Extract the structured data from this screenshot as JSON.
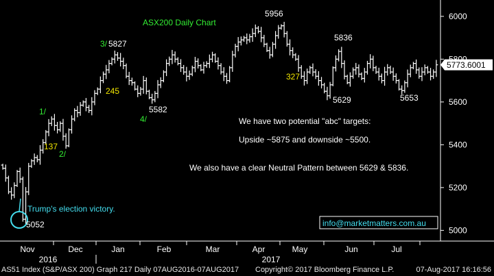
{
  "chart_data": {
    "type": "ohlc",
    "title": "ASX200 Daily Chart",
    "ylim": [
      4950,
      6070
    ],
    "y_ticks": [
      5000,
      5200,
      5400,
      5600,
      5800,
      6000
    ],
    "months": [
      "Nov",
      "Dec",
      "Jan",
      "Feb",
      "Mar",
      "Apr",
      "May",
      "Jun",
      "Jul"
    ],
    "years": [
      "2016",
      "2017"
    ],
    "last_price": "5773.6001",
    "series": [
      {
        "close": [
          5290,
          5245,
          5180,
          5165,
          5210,
          5275,
          5240,
          5052,
          5180,
          5300,
          5325,
          5340,
          5330,
          5375,
          5410,
          5460,
          5500,
          5520,
          5490,
          5470,
          5500,
          5440,
          5395,
          5470,
          5520,
          5560,
          5550,
          5585,
          5600,
          5575,
          5560,
          5600,
          5640,
          5660,
          5700,
          5730,
          5750,
          5780,
          5800,
          5820,
          5805,
          5790,
          5770,
          5720,
          5700,
          5690,
          5660,
          5640,
          5660,
          5700,
          5650,
          5620,
          5610,
          5640,
          5680,
          5700,
          5740,
          5780,
          5800,
          5820,
          5800,
          5780,
          5760,
          5740,
          5720,
          5730,
          5760,
          5790,
          5770,
          5750,
          5770,
          5780,
          5800,
          5820,
          5790,
          5770,
          5740,
          5720,
          5700,
          5760,
          5820,
          5860,
          5880,
          5890,
          5900,
          5890,
          5905,
          5920,
          5945,
          5930,
          5900,
          5870,
          5840,
          5820,
          5870,
          5910,
          5945,
          5956,
          5920,
          5870,
          5840,
          5820,
          5800,
          5760,
          5720,
          5700,
          5740,
          5760,
          5740,
          5720,
          5700,
          5680,
          5650,
          5629,
          5680,
          5760,
          5800,
          5836,
          5780,
          5720,
          5690,
          5720,
          5750,
          5760,
          5730,
          5710,
          5740,
          5780,
          5800,
          5760,
          5740,
          5720,
          5700,
          5740,
          5760,
          5740,
          5720,
          5700,
          5660,
          5653,
          5690,
          5730,
          5760,
          5780,
          5750,
          5720,
          5740,
          5760,
          5740,
          5720,
          5740,
          5773.6
        ]
      }
    ],
    "annotations": {
      "high_5956": "5956",
      "high_5836": "5836",
      "high_5827": "5827",
      "low_5629": "5629",
      "low_5653": "5653",
      "low_5582": "5582",
      "low_5052": "5052",
      "wave_1": "1/",
      "wave_2": "2/",
      "wave_3": "3/",
      "wave_4": "4/",
      "fib_137": "137",
      "fib_245": "245",
      "fib_327": "327",
      "election": "Trump's election victory.",
      "note_1": "We have two potential \"abc\" targets:",
      "note_2": "Upside ~5875 and downside ~5500.",
      "note_3": "We also have a clear Neutral Pattern between 5629 & 5836.",
      "email": "info@marketmatters.com.au"
    },
    "grid": false,
    "colors": {
      "background": "#000000",
      "bars": "#ffffff",
      "green_labels": "#33ee33",
      "yellow_labels": "#f2e600",
      "cyan": "#44ddee",
      "price_box": "#ffffff"
    }
  },
  "footer": {
    "left": "AS51 Index (S&P/ASX 200) Graph 217  Daily 07AUG2016-07AUG2017",
    "center": "Copyright© 2017 Bloomberg Finance L.P.",
    "right": "07-Aug-2017 16:16:56"
  }
}
